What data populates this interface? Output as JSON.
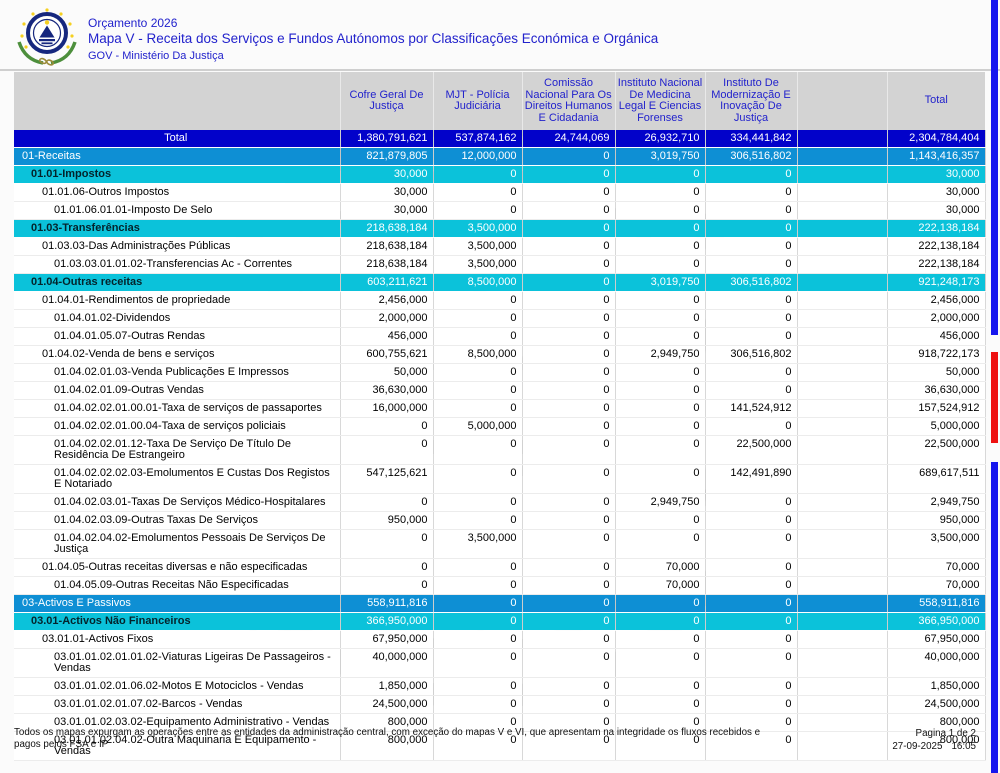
{
  "header": {
    "budget_label": "Orçamento 2026",
    "title": "Mapa V - Receita dos Serviços e Fundos Autónomos por Classificações Económica e Orgánica",
    "subtitle": "GOV - Ministério Da Justiça"
  },
  "colors": {
    "title_text": "#2222cc",
    "header_band": "#d3d3d3",
    "total_row": "#0202ca",
    "section_row": "#0e8fd4",
    "subsection_row": "#0bc2da",
    "flag_blue": "#1616ee",
    "flag_red": "#ee1111"
  },
  "table": {
    "columns": [
      "",
      "Cofre Geral De Justiça",
      "MJT - Polícia Judiciária",
      "Comissão Nacional Para Os Direitos Humanos E Cidadania",
      "Instituto Nacional De Medicina Legal E Ciencias Forenses",
      "Instituto De Modernização E Inovação De Justiça",
      "",
      "Total"
    ],
    "rows": [
      {
        "label": "Total",
        "type": "total",
        "level": 0,
        "values": [
          "1,380,791,621",
          "537,874,162",
          "24,744,069",
          "26,932,710",
          "334,441,842",
          "",
          "2,304,784,404"
        ]
      },
      {
        "label": "01-Receitas",
        "type": "s1",
        "level": 1,
        "values": [
          "821,879,805",
          "12,000,000",
          "0",
          "3,019,750",
          "306,516,802",
          "",
          "1,143,416,357"
        ]
      },
      {
        "label": "01.01-Impostos",
        "type": "s2",
        "level": 2,
        "values": [
          "30,000",
          "0",
          "0",
          "0",
          "0",
          "",
          "30,000"
        ]
      },
      {
        "label": "01.01.06-Outros Impostos",
        "type": "plain",
        "level": 3,
        "values": [
          "30,000",
          "0",
          "0",
          "0",
          "0",
          "",
          "30,000"
        ]
      },
      {
        "label": "01.01.06.01.01-Imposto De Selo",
        "type": "plain",
        "level": 4,
        "values": [
          "30,000",
          "0",
          "0",
          "0",
          "0",
          "",
          "30,000"
        ]
      },
      {
        "label": "01.03-Transferências",
        "type": "s2",
        "level": 2,
        "values": [
          "218,638,184",
          "3,500,000",
          "0",
          "0",
          "0",
          "",
          "222,138,184"
        ]
      },
      {
        "label": "01.03.03-Das Administrações Públicas",
        "type": "plain",
        "level": 3,
        "values": [
          "218,638,184",
          "3,500,000",
          "0",
          "0",
          "0",
          "",
          "222,138,184"
        ]
      },
      {
        "label": "01.03.03.01.01.02-Transferencias Ac - Correntes",
        "type": "plain",
        "level": 4,
        "values": [
          "218,638,184",
          "3,500,000",
          "0",
          "0",
          "0",
          "",
          "222,138,184"
        ]
      },
      {
        "label": "01.04-Outras receitas",
        "type": "s2",
        "level": 2,
        "values": [
          "603,211,621",
          "8,500,000",
          "0",
          "3,019,750",
          "306,516,802",
          "",
          "921,248,173"
        ]
      },
      {
        "label": "01.04.01-Rendimentos de propriedade",
        "type": "plain",
        "level": 3,
        "values": [
          "2,456,000",
          "0",
          "0",
          "0",
          "0",
          "",
          "2,456,000"
        ]
      },
      {
        "label": "01.04.01.02-Dividendos",
        "type": "plain",
        "level": 4,
        "values": [
          "2,000,000",
          "0",
          "0",
          "0",
          "0",
          "",
          "2,000,000"
        ]
      },
      {
        "label": "01.04.01.05.07-Outras Rendas",
        "type": "plain",
        "level": 4,
        "values": [
          "456,000",
          "0",
          "0",
          "0",
          "0",
          "",
          "456,000"
        ]
      },
      {
        "label": "01.04.02-Venda de bens e serviços",
        "type": "plain",
        "level": 3,
        "values": [
          "600,755,621",
          "8,500,000",
          "0",
          "2,949,750",
          "306,516,802",
          "",
          "918,722,173"
        ]
      },
      {
        "label": "01.04.02.01.03-Venda Publicações E Impressos",
        "type": "plain",
        "level": 4,
        "values": [
          "50,000",
          "0",
          "0",
          "0",
          "0",
          "",
          "50,000"
        ]
      },
      {
        "label": "01.04.02.01.09-Outras Vendas",
        "type": "plain",
        "level": 4,
        "values": [
          "36,630,000",
          "0",
          "0",
          "0",
          "0",
          "",
          "36,630,000"
        ]
      },
      {
        "label": "01.04.02.02.01.00.01-Taxa de serviços de passaportes",
        "type": "plain",
        "level": 4,
        "values": [
          "16,000,000",
          "0",
          "0",
          "0",
          "141,524,912",
          "",
          "157,524,912"
        ]
      },
      {
        "label": "01.04.02.02.01.00.04-Taxa de serviços policiais",
        "type": "plain",
        "level": 4,
        "values": [
          "0",
          "5,000,000",
          "0",
          "0",
          "0",
          "",
          "5,000,000"
        ]
      },
      {
        "label": "01.04.02.02.01.12-Taxa De Serviço De Título De Residência De Estrangeiro",
        "type": "plain",
        "level": 4,
        "values": [
          "0",
          "0",
          "0",
          "0",
          "22,500,000",
          "",
          "22,500,000"
        ]
      },
      {
        "label": "01.04.02.02.02.03-Emolumentos E Custas Dos Registos E Notariado",
        "type": "plain",
        "level": 4,
        "values": [
          "547,125,621",
          "0",
          "0",
          "0",
          "142,491,890",
          "",
          "689,617,511"
        ]
      },
      {
        "label": "01.04.02.03.01-Taxas De Serviços Médico-Hospitalares",
        "type": "plain",
        "level": 4,
        "values": [
          "0",
          "0",
          "0",
          "2,949,750",
          "0",
          "",
          "2,949,750"
        ]
      },
      {
        "label": "01.04.02.03.09-Outras Taxas De Serviços",
        "type": "plain",
        "level": 4,
        "values": [
          "950,000",
          "0",
          "0",
          "0",
          "0",
          "",
          "950,000"
        ]
      },
      {
        "label": "01.04.02.04.02-Emolumentos Pessoais De Serviços De Justiça",
        "type": "plain",
        "level": 4,
        "values": [
          "0",
          "3,500,000",
          "0",
          "0",
          "0",
          "",
          "3,500,000"
        ]
      },
      {
        "label": "01.04.05-Outras receitas diversas e não especificadas",
        "type": "plain",
        "level": 3,
        "values": [
          "0",
          "0",
          "0",
          "70,000",
          "0",
          "",
          "70,000"
        ]
      },
      {
        "label": "01.04.05.09-Outras Receitas  Não Especificadas",
        "type": "plain",
        "level": 4,
        "values": [
          "0",
          "0",
          "0",
          "70,000",
          "0",
          "",
          "70,000"
        ]
      },
      {
        "label": "03-Activos E Passivos",
        "type": "s1",
        "level": 1,
        "values": [
          "558,911,816",
          "0",
          "0",
          "0",
          "0",
          "",
          "558,911,816"
        ]
      },
      {
        "label": "03.01-Activos Não Financeiros",
        "type": "s2",
        "level": 2,
        "values": [
          "366,950,000",
          "0",
          "0",
          "0",
          "0",
          "",
          "366,950,000"
        ]
      },
      {
        "label": "03.01.01-Activos Fixos",
        "type": "plain",
        "level": 3,
        "values": [
          "67,950,000",
          "0",
          "0",
          "0",
          "0",
          "",
          "67,950,000"
        ]
      },
      {
        "label": "03.01.01.02.01.01.02-Viaturas Ligeiras De Passageiros - Vendas",
        "type": "plain",
        "level": 4,
        "values": [
          "40,000,000",
          "0",
          "0",
          "0",
          "0",
          "",
          "40,000,000"
        ]
      },
      {
        "label": "03.01.01.02.01.06.02-Motos E Motociclos - Vendas",
        "type": "plain",
        "level": 4,
        "values": [
          "1,850,000",
          "0",
          "0",
          "0",
          "0",
          "",
          "1,850,000"
        ]
      },
      {
        "label": "03.01.01.02.01.07.02-Barcos - Vendas",
        "type": "plain",
        "level": 4,
        "values": [
          "24,500,000",
          "0",
          "0",
          "0",
          "0",
          "",
          "24,500,000"
        ]
      },
      {
        "label": "03.01.01.02.03.02-Equipamento Administrativo - Vendas",
        "type": "plain",
        "level": 4,
        "values": [
          "800,000",
          "0",
          "0",
          "0",
          "0",
          "",
          "800,000"
        ]
      },
      {
        "label": "03.01.01.02.04.02-Outra Maquinaria E Equipamento - Vendas",
        "type": "plain",
        "level": 4,
        "values": [
          "800,000",
          "0",
          "0",
          "0",
          "0",
          "",
          "800,000"
        ]
      }
    ]
  },
  "footer": {
    "note": "Todos os mapas expurgam as operações entre as entidades da administração central, com exceção do mapas V e VI, que apresentam na integridade os fluxos recebidos e pagos pelos FSA e IP",
    "page": "Pagina 1 de 2",
    "date": "27-09-2025",
    "time": "16:05"
  }
}
